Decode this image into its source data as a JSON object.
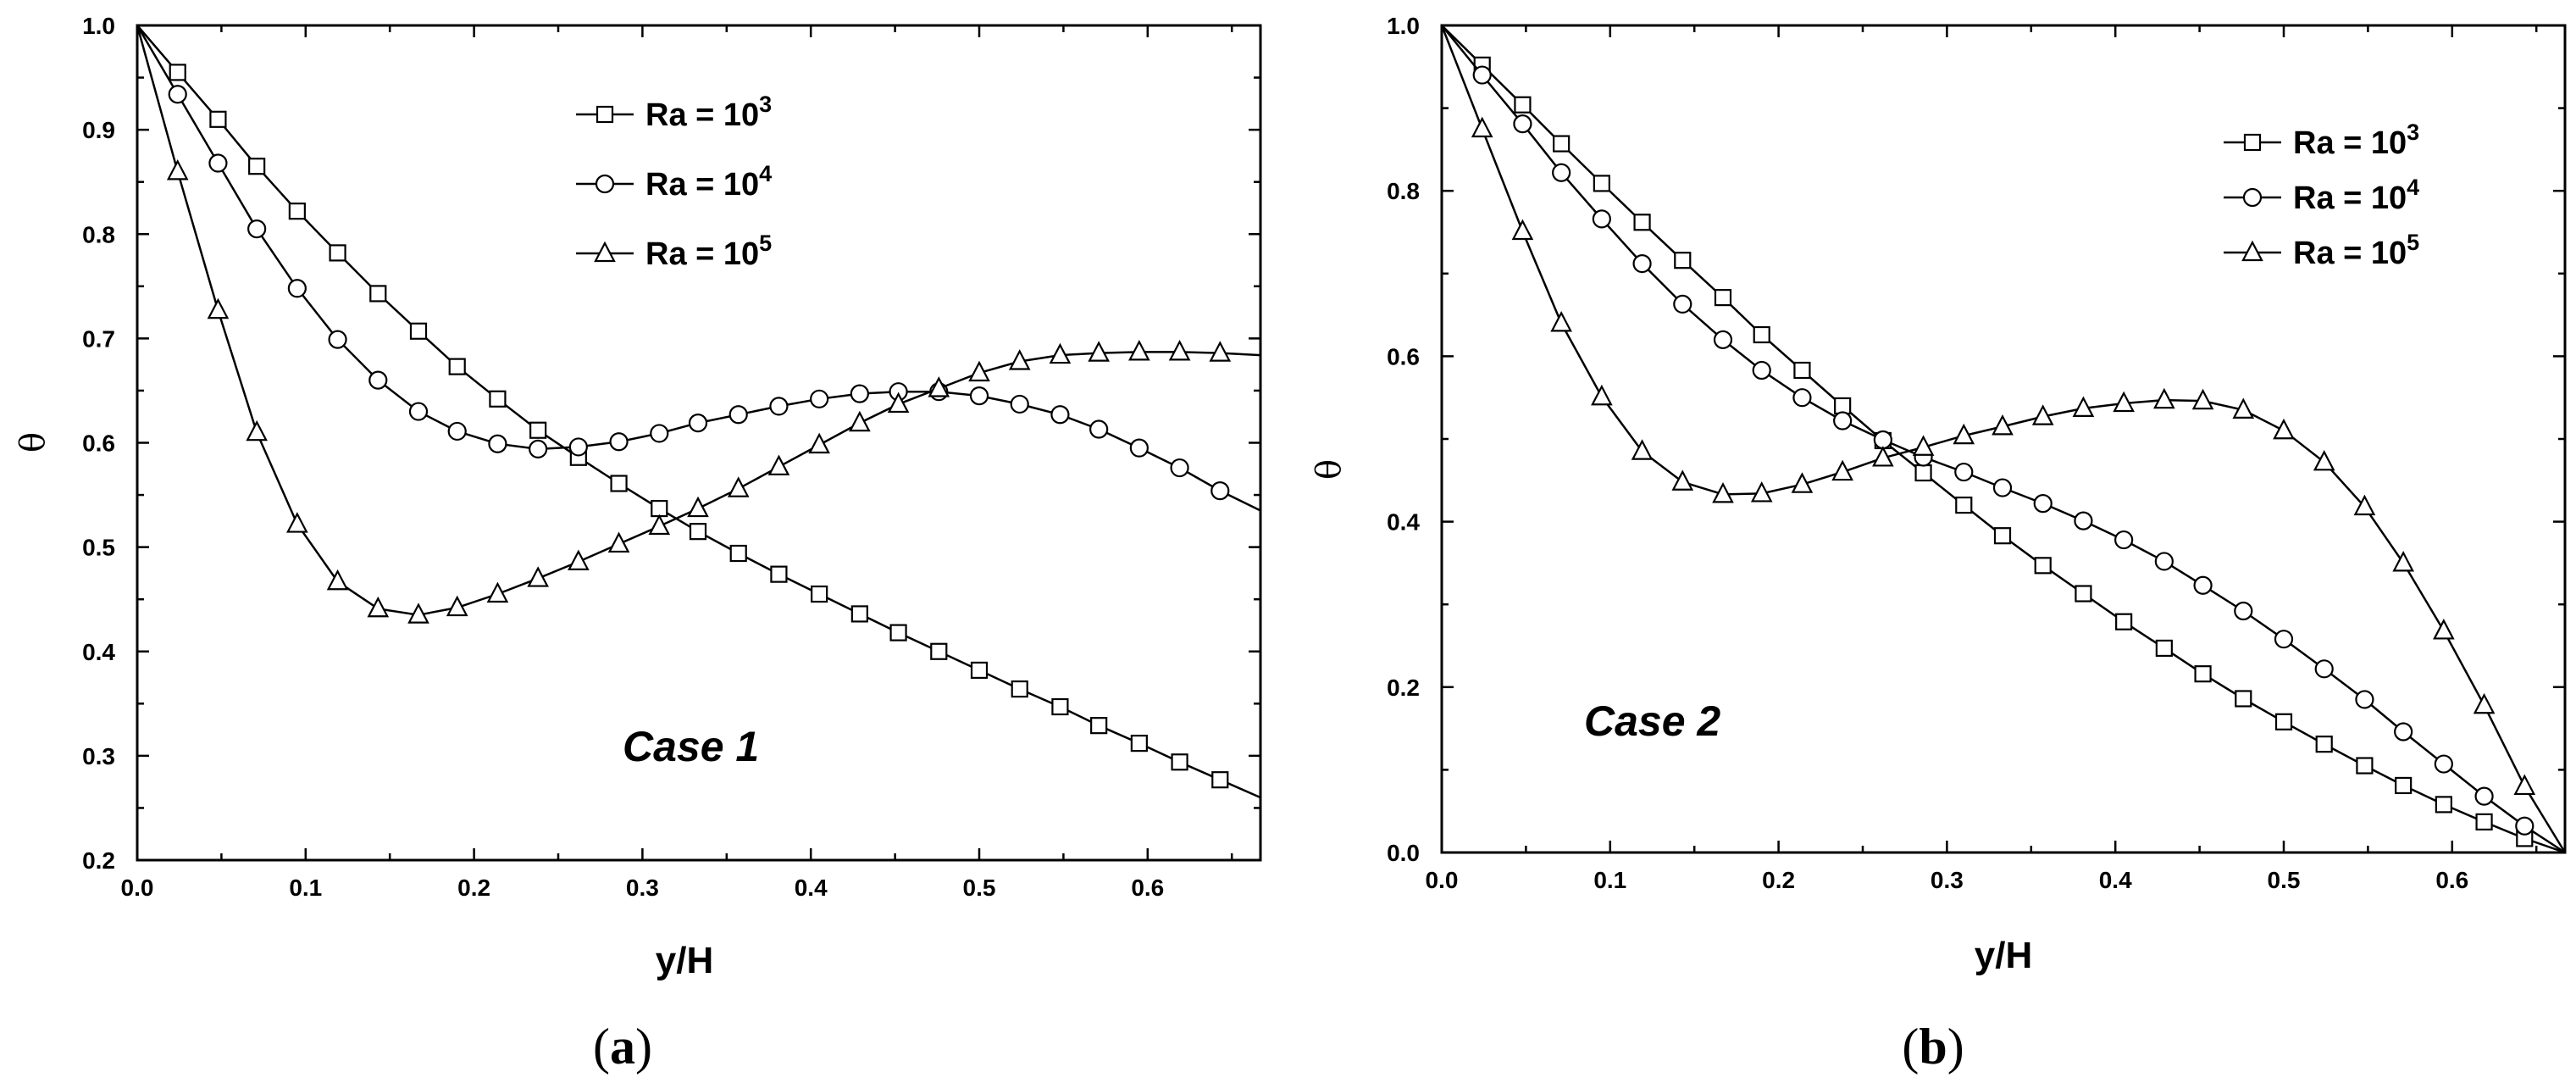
{
  "chart_data": [
    {
      "type": "line",
      "panel_label": "(a)",
      "annotation": "Case 1",
      "xlabel": "y/H",
      "ylabel": "θ",
      "xlim": [
        0,
        0.667
      ],
      "ylim": [
        0.2,
        1.0
      ],
      "xticks": [
        "0.0",
        "0.1",
        "0.2",
        "0.3",
        "0.4",
        "0.5",
        "0.6"
      ],
      "yticks": [
        "0.2",
        "0.3",
        "0.4",
        "0.5",
        "0.6",
        "0.7",
        "0.8",
        "0.9",
        "1.0"
      ],
      "legend_position": "top-center",
      "series": [
        {
          "name": "Ra = 10^3",
          "label": "Ra = 10",
          "sup": "3",
          "marker": "square",
          "x": [
            0,
            0.024,
            0.048,
            0.071,
            0.095,
            0.119,
            0.143,
            0.167,
            0.19,
            0.214,
            0.238,
            0.262,
            0.286,
            0.31,
            0.333,
            0.357,
            0.381,
            0.405,
            0.429,
            0.452,
            0.476,
            0.5,
            0.524,
            0.548,
            0.571,
            0.595,
            0.619,
            0.643,
            0.667
          ],
          "y": [
            1.0,
            0.955,
            0.91,
            0.865,
            0.822,
            0.782,
            0.743,
            0.707,
            0.673,
            0.642,
            0.612,
            0.586,
            0.561,
            0.537,
            0.515,
            0.494,
            0.474,
            0.455,
            0.436,
            0.418,
            0.4,
            0.382,
            0.364,
            0.347,
            0.329,
            0.312,
            0.294,
            0.277,
            0.26
          ]
        },
        {
          "name": "Ra = 10^4",
          "label": "Ra = 10",
          "sup": "4",
          "marker": "circle",
          "x": [
            0,
            0.024,
            0.048,
            0.071,
            0.095,
            0.119,
            0.143,
            0.167,
            0.19,
            0.214,
            0.238,
            0.262,
            0.286,
            0.31,
            0.333,
            0.357,
            0.381,
            0.405,
            0.429,
            0.452,
            0.476,
            0.5,
            0.524,
            0.548,
            0.571,
            0.595,
            0.619,
            0.643,
            0.667
          ],
          "y": [
            1.0,
            0.934,
            0.868,
            0.805,
            0.748,
            0.699,
            0.66,
            0.63,
            0.611,
            0.599,
            0.594,
            0.596,
            0.601,
            0.609,
            0.619,
            0.627,
            0.635,
            0.642,
            0.647,
            0.649,
            0.649,
            0.645,
            0.637,
            0.627,
            0.613,
            0.595,
            0.576,
            0.554,
            0.535
          ]
        },
        {
          "name": "Ra = 10^5",
          "label": "Ra = 10",
          "sup": "5",
          "marker": "triangle",
          "x": [
            0,
            0.024,
            0.048,
            0.071,
            0.095,
            0.119,
            0.143,
            0.167,
            0.19,
            0.214,
            0.238,
            0.262,
            0.286,
            0.31,
            0.333,
            0.357,
            0.381,
            0.405,
            0.429,
            0.452,
            0.476,
            0.5,
            0.524,
            0.548,
            0.571,
            0.595,
            0.619,
            0.643,
            0.667
          ],
          "y": [
            1.0,
            0.86,
            0.727,
            0.61,
            0.522,
            0.467,
            0.441,
            0.435,
            0.442,
            0.455,
            0.47,
            0.486,
            0.503,
            0.52,
            0.537,
            0.556,
            0.577,
            0.598,
            0.619,
            0.637,
            0.652,
            0.667,
            0.678,
            0.684,
            0.686,
            0.687,
            0.687,
            0.686,
            0.684
          ]
        }
      ]
    },
    {
      "type": "line",
      "panel_label": "(b)",
      "annotation": "Case 2",
      "xlabel": "y/H",
      "ylabel": "θ",
      "xlim": [
        0,
        0.667
      ],
      "ylim": [
        0.0,
        1.0
      ],
      "xticks": [
        "0.0",
        "0.1",
        "0.2",
        "0.3",
        "0.4",
        "0.5",
        "0.6"
      ],
      "yticks": [
        "0.0",
        "0.2",
        "0.4",
        "0.6",
        "0.8",
        "1.0"
      ],
      "legend_position": "top-right",
      "series": [
        {
          "name": "Ra = 10^3",
          "label": "Ra = 10",
          "sup": "3",
          "marker": "square",
          "x": [
            0,
            0.024,
            0.048,
            0.071,
            0.095,
            0.119,
            0.143,
            0.167,
            0.19,
            0.214,
            0.238,
            0.262,
            0.286,
            0.31,
            0.333,
            0.357,
            0.381,
            0.405,
            0.429,
            0.452,
            0.476,
            0.5,
            0.524,
            0.548,
            0.571,
            0.595,
            0.619,
            0.643,
            0.667
          ],
          "y": [
            1.0,
            0.952,
            0.904,
            0.857,
            0.809,
            0.762,
            0.716,
            0.671,
            0.626,
            0.583,
            0.54,
            0.498,
            0.459,
            0.42,
            0.383,
            0.347,
            0.313,
            0.279,
            0.247,
            0.216,
            0.186,
            0.158,
            0.131,
            0.105,
            0.081,
            0.058,
            0.037,
            0.017,
            0.0
          ]
        },
        {
          "name": "Ra = 10^4",
          "label": "Ra = 10",
          "sup": "4",
          "marker": "circle",
          "x": [
            0,
            0.024,
            0.048,
            0.071,
            0.095,
            0.119,
            0.143,
            0.167,
            0.19,
            0.214,
            0.238,
            0.262,
            0.286,
            0.31,
            0.333,
            0.357,
            0.381,
            0.405,
            0.429,
            0.452,
            0.476,
            0.5,
            0.524,
            0.548,
            0.571,
            0.595,
            0.619,
            0.643,
            0.667
          ],
          "y": [
            1.0,
            0.94,
            0.881,
            0.822,
            0.766,
            0.712,
            0.663,
            0.62,
            0.583,
            0.55,
            0.522,
            0.499,
            0.478,
            0.46,
            0.441,
            0.422,
            0.401,
            0.378,
            0.352,
            0.323,
            0.292,
            0.258,
            0.222,
            0.185,
            0.146,
            0.107,
            0.068,
            0.032,
            0.0
          ]
        },
        {
          "name": "Ra = 10^5",
          "label": "Ra = 10",
          "sup": "5",
          "marker": "triangle",
          "x": [
            0,
            0.024,
            0.048,
            0.071,
            0.095,
            0.119,
            0.143,
            0.167,
            0.19,
            0.214,
            0.238,
            0.262,
            0.286,
            0.31,
            0.333,
            0.357,
            0.381,
            0.405,
            0.429,
            0.452,
            0.476,
            0.5,
            0.524,
            0.548,
            0.571,
            0.595,
            0.619,
            0.643,
            0.667
          ],
          "y": [
            1.0,
            0.875,
            0.751,
            0.64,
            0.551,
            0.485,
            0.448,
            0.433,
            0.434,
            0.445,
            0.46,
            0.477,
            0.49,
            0.504,
            0.515,
            0.527,
            0.537,
            0.543,
            0.547,
            0.546,
            0.535,
            0.51,
            0.472,
            0.418,
            0.35,
            0.268,
            0.178,
            0.08,
            0.0
          ]
        }
      ]
    }
  ]
}
